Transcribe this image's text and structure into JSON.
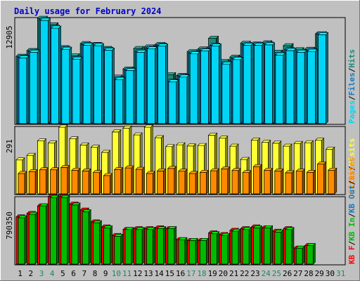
{
  "title": "Daily usage for February 2024",
  "colors": {
    "background": "#c0c0c0",
    "plot_bg": "#c0c0c0",
    "frame": "#000000",
    "hits": "#1b8a78",
    "files": "#1679c4",
    "pages": "#00d5f5",
    "visits": "#ffff33",
    "sites": "#ff8a00",
    "kb_f": "#ff0000",
    "kb_in": "#00bb00",
    "kb_out": "#1679c4",
    "title": "#0000cc",
    "weekday": "#000000",
    "weekend": "#1b8a5a"
  },
  "chart_data": {
    "type": "bar",
    "days": [
      "1",
      "2",
      "3",
      "4",
      "5",
      "6",
      "7",
      "8",
      "9",
      "10",
      "11",
      "12",
      "13",
      "14",
      "15",
      "16",
      "17",
      "18",
      "19",
      "20",
      "21",
      "22",
      "23",
      "24",
      "25",
      "26",
      "27",
      "28",
      "29",
      "30",
      "31"
    ],
    "weekend_days": [
      "3",
      "4",
      "10",
      "11",
      "17",
      "18",
      "24",
      "25",
      "31"
    ],
    "panels": [
      {
        "max_label": "12905",
        "ylim": [
          0,
          12905
        ],
        "side_labels": [
          "Pages",
          "/",
          "Files",
          "/",
          "Hits"
        ],
        "series": [
          {
            "name": "Hits",
            "color_key": "hits",
            "values": [
              8250,
              8950,
              12905,
              12100,
              9300,
              8300,
              9800,
              9700,
              9200,
              5700,
              6700,
              9200,
              9400,
              9700,
              6000,
              5900,
              8800,
              9150,
              10450,
              7600,
              8150,
              9850,
              9750,
              9900,
              8750,
              9550,
              9050,
              9100,
              11000,
              0,
              0
            ]
          },
          {
            "name": "Files",
            "color_key": "files",
            "values": [
              8150,
              8850,
              12750,
              11800,
              9200,
              8000,
              9700,
              9650,
              9100,
              5500,
              6600,
              8850,
              9250,
              9600,
              5200,
              5800,
              8650,
              9000,
              9600,
              7400,
              7950,
              9700,
              9700,
              9750,
              8500,
              9050,
              8850,
              8950,
              11000,
              0,
              0
            ]
          },
          {
            "name": "Pages",
            "color_key": "pages",
            "values": [
              8050,
              8750,
              12650,
              11700,
              9100,
              7900,
              9600,
              9550,
              9000,
              5400,
              6500,
              8750,
              9150,
              9500,
              5100,
              5700,
              8550,
              8900,
              9500,
              7300,
              7850,
              9600,
              9600,
              9650,
              8400,
              8950,
              8750,
              8850,
              10900,
              0,
              0
            ]
          }
        ]
      },
      {
        "max_label": "291",
        "ylim": [
          0,
          291
        ],
        "side_labels": [
          "Sites",
          "/",
          "Visits"
        ],
        "series": [
          {
            "name": "Visits",
            "color_key": "visits",
            "values": [
              148,
              168,
              231,
              222,
              291,
              240,
              213,
              203,
              181,
              270,
              287,
              257,
              291,
              245,
              206,
              214,
              209,
              211,
              256,
              243,
              208,
              150,
              234,
              225,
              221,
              208,
              220,
              223,
              234,
              195,
              0
            ]
          },
          {
            "name": "Sites",
            "color_key": "sites",
            "values": [
              89,
              97,
              105,
              105,
              115,
              103,
              100,
              93,
              80,
              106,
              113,
              107,
              89,
              100,
              111,
              99,
              89,
              94,
              101,
              109,
              102,
              93,
              119,
              103,
              100,
              92,
              99,
              94,
              130,
              103,
              0
            ]
          }
        ]
      },
      {
        "max_label": "790350",
        "ylim": [
          0,
          790350
        ],
        "side_labels": [
          "KB F",
          "/",
          "KB In",
          "/",
          "KB Out",
          "/",
          "Sites"
        ],
        "series": [
          {
            "name": "KB F",
            "color_key": "kb_f",
            "values": [
              560000,
              600000,
              690000,
              800000,
              800000,
              710000,
              640000,
              500000,
              440000,
              340000,
              410000,
              420000,
              420000,
              430000,
              420000,
              290000,
              280000,
              280000,
              370000,
              350000,
              400000,
              420000,
              440000,
              430000,
              390000,
              420000,
              190000,
              220000,
              0,
              0,
              0
            ]
          },
          {
            "name": "KB In",
            "color_key": "kb_in",
            "values": [
              550000,
              590000,
              690000,
              790000,
              790000,
              700000,
              620000,
              490000,
              430000,
              330000,
              410000,
              410000,
              410000,
              420000,
              420000,
              290000,
              280000,
              280000,
              360000,
              340000,
              390000,
              410000,
              430000,
              430000,
              380000,
              410000,
              190000,
              220000,
              0,
              0,
              0
            ]
          }
        ]
      }
    ]
  }
}
